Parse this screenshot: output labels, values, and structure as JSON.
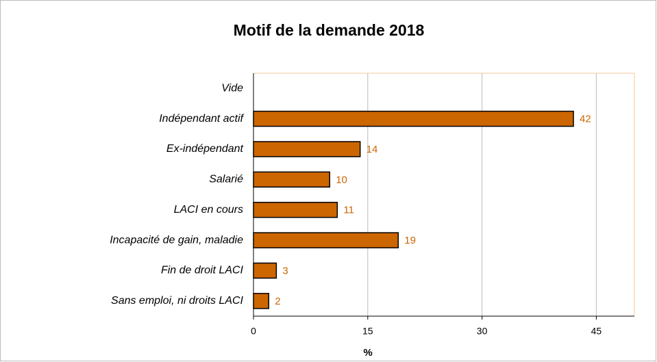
{
  "chart_data": {
    "type": "bar",
    "orientation": "horizontal",
    "title": "Motif de la demande 2018",
    "categories": [
      "Vide",
      "Indépendant actif",
      "Ex-indépendant",
      "Salarié",
      "LACI en cours",
      "Incapacité de gain, maladie",
      "Fin de droit LACI",
      "Sans emploi, ni droits LACI"
    ],
    "values": [
      null,
      42,
      14,
      10,
      11,
      19,
      3,
      2
    ],
    "color": "#cc6600",
    "x_label": "%",
    "xlim": [
      0,
      50
    ],
    "xticks": [
      0,
      15,
      30,
      45
    ],
    "grid": true
  }
}
